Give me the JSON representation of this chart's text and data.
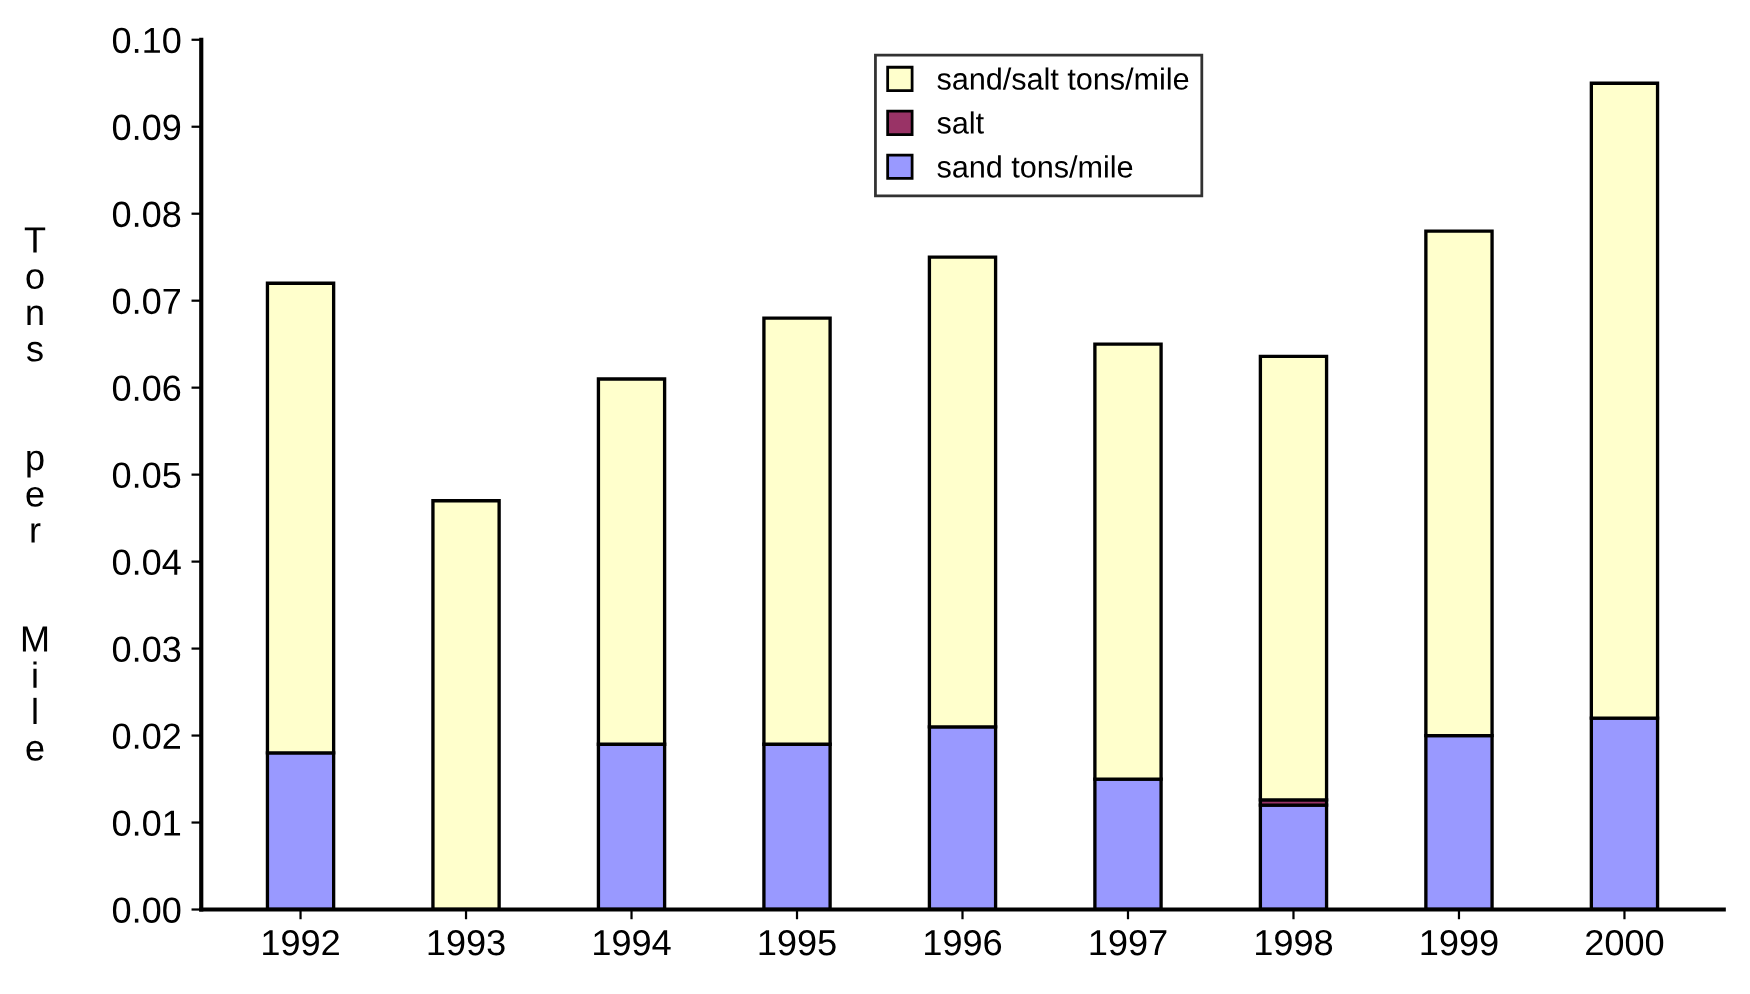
{
  "chart_data": {
    "type": "bar",
    "stacked": true,
    "ylabel": "Tons per Mile",
    "categories": [
      "1992",
      "1993",
      "1994",
      "1995",
      "1996",
      "1997",
      "1998",
      "1999",
      "2000"
    ],
    "series": [
      {
        "name": "sand tons/mile",
        "color": "#9999ff",
        "values": [
          0.018,
          null,
          0.019,
          0.019,
          0.021,
          0.015,
          0.012,
          0.02,
          0.022
        ]
      },
      {
        "name": "salt",
        "color": "#993366",
        "values": [
          null,
          null,
          null,
          null,
          null,
          null,
          0.0006,
          null,
          null
        ]
      },
      {
        "name": "sand/salt tons/mile",
        "color": "#ffffcc",
        "values": [
          0.054,
          0.047,
          0.042,
          0.049,
          0.054,
          0.05,
          0.051,
          0.058,
          0.073
        ]
      }
    ],
    "ylim": [
      0,
      0.1
    ],
    "yticks": [
      {
        "value": 0,
        "label": "0.00"
      },
      {
        "value": 0.01,
        "label": "0.01"
      },
      {
        "value": 0.02,
        "label": "0.02"
      },
      {
        "value": 0.03,
        "label": "0.03"
      },
      {
        "value": 0.04,
        "label": "0.04"
      },
      {
        "value": 0.05,
        "label": "0.05"
      },
      {
        "value": 0.06,
        "label": "0.06"
      },
      {
        "value": 0.07,
        "label": "0.07"
      },
      {
        "value": 0.08,
        "label": "0.08"
      },
      {
        "value": 0.09,
        "label": "0.09"
      },
      {
        "value": 0.1,
        "label": "0.10"
      }
    ],
    "grid": false,
    "legend": "top"
  }
}
